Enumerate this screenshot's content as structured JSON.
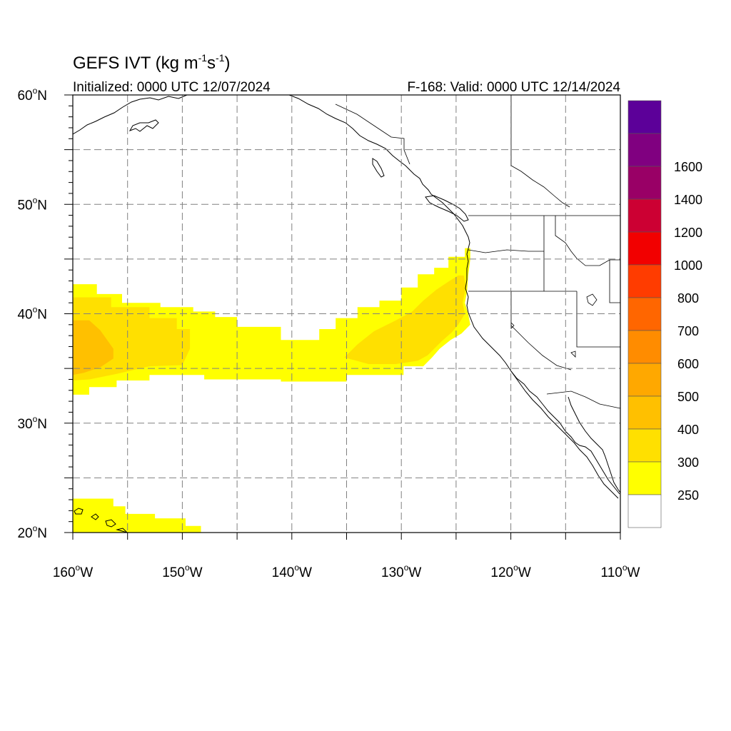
{
  "header": {
    "title_prefix": "GEFS IVT (kg m",
    "title_sup1": "-1",
    "title_mid": "s",
    "title_sup2": "-1",
    "title_suffix": ")",
    "initialized": "Initialized: 0000 UTC 12/07/2024",
    "valid": "F-168: Valid: 0000 UTC 12/14/2024"
  },
  "map": {
    "lon_range": [
      -160,
      -110
    ],
    "lat_range": [
      20,
      60
    ],
    "grid": "dashed, every 5 degrees",
    "x_ticks": [
      {
        "lon": -160,
        "num": "160",
        "hemi": "W"
      },
      {
        "lon": -150,
        "num": "150",
        "hemi": "W"
      },
      {
        "lon": -140,
        "num": "140",
        "hemi": "W"
      },
      {
        "lon": -130,
        "num": "130",
        "hemi": "W"
      },
      {
        "lon": -120,
        "num": "120",
        "hemi": "W"
      },
      {
        "lon": -110,
        "num": "110",
        "hemi": "W"
      }
    ],
    "y_ticks": [
      {
        "lat": 60,
        "num": "60",
        "hemi": "N"
      },
      {
        "lat": 50,
        "num": "50",
        "hemi": "N"
      },
      {
        "lat": 40,
        "num": "40",
        "hemi": "N"
      },
      {
        "lat": 30,
        "num": "30",
        "hemi": "N"
      },
      {
        "lat": 20,
        "num": "20",
        "hemi": "N"
      }
    ],
    "ivt_fields": [
      {
        "level": "250-300",
        "color": "#ffff00",
        "polygon": [
          [
            -160,
            42.7
          ],
          [
            -157.8,
            42.7
          ],
          [
            -157.8,
            41.8
          ],
          [
            -155.5,
            41.8
          ],
          [
            -155.5,
            41.0
          ],
          [
            -152,
            41.0
          ],
          [
            -152,
            40.6
          ],
          [
            -149,
            40.6
          ],
          [
            -149,
            40.2
          ],
          [
            -147,
            40.2
          ],
          [
            -147,
            39.7
          ],
          [
            -145,
            39.7
          ],
          [
            -145,
            38.8
          ],
          [
            -141,
            38.8
          ],
          [
            -141,
            37.6
          ],
          [
            -137.5,
            37.6
          ],
          [
            -137.5,
            38.6
          ],
          [
            -136,
            38.6
          ],
          [
            -136,
            39.6
          ],
          [
            -134,
            39.6
          ],
          [
            -134,
            40.6
          ],
          [
            -132,
            40.6
          ],
          [
            -132,
            41.2
          ],
          [
            -130,
            41.2
          ],
          [
            -130,
            42.4
          ],
          [
            -128.5,
            42.4
          ],
          [
            -128.5,
            43.6
          ],
          [
            -127,
            43.6
          ],
          [
            -127,
            44.2
          ],
          [
            -125.7,
            44.2
          ],
          [
            -125.7,
            45.2
          ],
          [
            -124.2,
            45.2
          ],
          [
            -124.2,
            46.0
          ],
          [
            -123.7,
            46.0
          ],
          [
            -123.7,
            45.0
          ],
          [
            -123.9,
            43.5
          ],
          [
            -124.0,
            42.0
          ],
          [
            -124.2,
            41.0
          ],
          [
            -123.9,
            40.0
          ],
          [
            -123.7,
            39.0
          ],
          [
            -124.5,
            38.2
          ],
          [
            -125.5,
            37.6
          ],
          [
            -126.5,
            36.8
          ],
          [
            -127.2,
            36.0
          ],
          [
            -128,
            35.2
          ],
          [
            -129.8,
            35.2
          ],
          [
            -129.8,
            34.4
          ],
          [
            -135,
            34.4
          ],
          [
            -135,
            33.8
          ],
          [
            -141,
            33.8
          ],
          [
            -141,
            34.0
          ],
          [
            -148,
            34.0
          ],
          [
            -148,
            34.4
          ],
          [
            -153,
            34.4
          ],
          [
            -153,
            33.9
          ],
          [
            -156,
            33.9
          ],
          [
            -156,
            33.3
          ],
          [
            -158.5,
            33.3
          ],
          [
            -158.5,
            32.6
          ],
          [
            -160,
            32.6
          ]
        ]
      },
      {
        "level": "300-400",
        "color": "#ffe000",
        "polygon": [
          [
            -160,
            41.5
          ],
          [
            -156.5,
            41.5
          ],
          [
            -156.5,
            40.6
          ],
          [
            -153,
            40.6
          ],
          [
            -153,
            39.6
          ],
          [
            -150.5,
            39.6
          ],
          [
            -150.5,
            38.6
          ],
          [
            -149.3,
            38.6
          ],
          [
            -149.3,
            36.8
          ],
          [
            -150,
            35.3
          ],
          [
            -153,
            35.2
          ],
          [
            -156,
            34.5
          ],
          [
            -158.5,
            34.0
          ],
          [
            -160,
            33.9
          ]
        ]
      },
      {
        "level": "300-400",
        "color": "#ffe000",
        "polygon": [
          [
            -135.2,
            36.0
          ],
          [
            -134,
            37.2
          ],
          [
            -132.5,
            38.4
          ],
          [
            -130.5,
            39.4
          ],
          [
            -129,
            40.2
          ],
          [
            -128,
            41.2
          ],
          [
            -126.8,
            42.2
          ],
          [
            -125.6,
            43.0
          ],
          [
            -124.8,
            43.5
          ],
          [
            -124.3,
            43.5
          ],
          [
            -124.1,
            42.5
          ],
          [
            -124.4,
            41.0
          ],
          [
            -124.2,
            40.0
          ],
          [
            -124.8,
            39.0
          ],
          [
            -125.4,
            38.3
          ],
          [
            -126.3,
            37.5
          ],
          [
            -127,
            36.8
          ],
          [
            -127.6,
            36.2
          ],
          [
            -128.5,
            35.7
          ],
          [
            -130.5,
            35.4
          ],
          [
            -133,
            35.4
          ]
        ]
      },
      {
        "level": "400-500",
        "color": "#ffc000",
        "polygon": [
          [
            -160,
            39.4
          ],
          [
            -158.5,
            39.4
          ],
          [
            -157.5,
            38.5
          ],
          [
            -156.3,
            36.8
          ],
          [
            -156.3,
            35.9
          ],
          [
            -157.5,
            35.1
          ],
          [
            -159,
            34.6
          ],
          [
            -160,
            34.4
          ]
        ]
      }
    ],
    "ivt_fields_hawaii": [
      {
        "level": "250-300",
        "color": "#ffff00",
        "polygon": [
          [
            -160,
            23.1
          ],
          [
            -156.3,
            23.1
          ],
          [
            -156.3,
            22.4
          ],
          [
            -155.2,
            22.4
          ],
          [
            -155.2,
            21.7
          ],
          [
            -152.5,
            21.7
          ],
          [
            -152.5,
            21.3
          ],
          [
            -149.7,
            21.3
          ],
          [
            -149.7,
            20.6
          ],
          [
            -148.3,
            20.6
          ],
          [
            -148.3,
            20.0
          ],
          [
            -160,
            20.0
          ]
        ]
      }
    ]
  },
  "colorbar": {
    "colors": [
      "#ffffff",
      "#ffff00",
      "#ffe000",
      "#ffc000",
      "#ffa800",
      "#ff8c00",
      "#ff6600",
      "#ff3c00",
      "#f20000",
      "#cc0033",
      "#990066",
      "#800080",
      "#5c0099"
    ],
    "labels": [
      "250",
      "300",
      "400",
      "500",
      "600",
      "700",
      "800",
      "1000",
      "1200",
      "1400",
      "1600"
    ]
  }
}
